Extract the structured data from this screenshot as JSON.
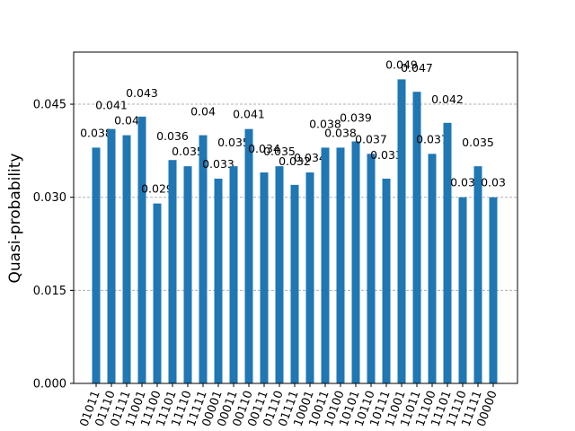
{
  "chart_data": {
    "type": "bar",
    "ylabel": "Quasi-probability",
    "categories": [
      "01011",
      "01110",
      "01111",
      "11001",
      "11100",
      "11101",
      "11110",
      "11111",
      "00001",
      "00011",
      "00110",
      "00111",
      "01110",
      "01111",
      "10001",
      "10011",
      "10100",
      "10101",
      "10110",
      "10111",
      "11001",
      "11011",
      "11100",
      "11101",
      "11110",
      "11111",
      "00000"
    ],
    "values": [
      0.038,
      0.041,
      0.04,
      0.043,
      0.029,
      0.036,
      0.035,
      0.04,
      0.033,
      0.035,
      0.041,
      0.034,
      0.035,
      0.032,
      0.034,
      0.038,
      0.038,
      0.039,
      0.037,
      0.033,
      0.049,
      0.047,
      0.037,
      0.042,
      0.03,
      0.035,
      0.03
    ],
    "color": "#1f77b4",
    "ylim": [
      0,
      0.0534
    ],
    "yticks": [
      {
        "value": 0,
        "label": "0.000"
      },
      {
        "value": 0.015,
        "label": "0.015"
      },
      {
        "value": 0.03,
        "label": "0.030"
      },
      {
        "value": 0.045,
        "label": "0.045"
      }
    ],
    "grid": true
  }
}
